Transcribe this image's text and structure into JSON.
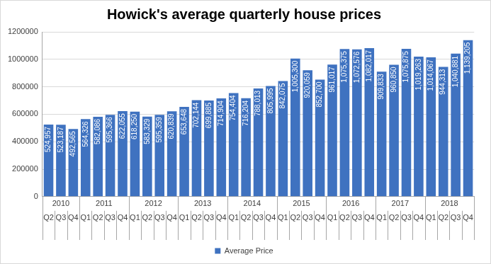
{
  "chart_data": {
    "type": "bar",
    "title": "Howick's average quarterly house prices",
    "categories": [
      "Q2",
      "Q3",
      "Q4",
      "Q1",
      "Q2",
      "Q3",
      "Q4",
      "Q1",
      "Q2",
      "Q3",
      "Q4",
      "Q1",
      "Q2",
      "Q3",
      "Q4",
      "Q1",
      "Q2",
      "Q3",
      "Q4",
      "Q1",
      "Q2",
      "Q3",
      "Q4",
      "Q1",
      "Q2",
      "Q3",
      "Q4",
      "Q1",
      "Q2",
      "Q3",
      "Q4",
      "Q1",
      "Q2",
      "Q3",
      "Q4"
    ],
    "groups": [
      {
        "label": "2010",
        "count": 3
      },
      {
        "label": "2011",
        "count": 4
      },
      {
        "label": "2012",
        "count": 4
      },
      {
        "label": "2013",
        "count": 4
      },
      {
        "label": "2014",
        "count": 4
      },
      {
        "label": "2015",
        "count": 4
      },
      {
        "label": "2016",
        "count": 4
      },
      {
        "label": "2017",
        "count": 4
      },
      {
        "label": "2018",
        "count": 4
      }
    ],
    "series": [
      {
        "name": "Average Price",
        "color": "#3f72c0",
        "values": [
          524957,
          523187,
          492565,
          564326,
          582086,
          595366,
          622055,
          618250,
          583329,
          595359,
          620839,
          653648,
          702144,
          699885,
          714904,
          754404,
          716204,
          788013,
          805995,
          842075,
          1005300,
          920059,
          852700,
          961017,
          1075375,
          1072576,
          1082017,
          909833,
          960850,
          1075875,
          1019263,
          1014067,
          944313,
          1040881,
          1139205
        ],
        "value_labels": [
          "524,957",
          "523,187",
          "492,565",
          "564,326",
          "582,086",
          "595,366",
          "622,055",
          "618,250",
          "583,329",
          "595,359",
          "620,839",
          "653,648",
          "702,144",
          "699,885",
          "714,904",
          "754,404",
          "716,204",
          "788,013",
          "805,995",
          "842,075",
          "1,005,300",
          "920,059",
          "852,700",
          "961,017",
          "1,075,375",
          "1,072,576",
          "1,082,017",
          "909,833",
          "960,850",
          "1,075,875",
          "1,019,263",
          "1,014,067",
          "944,313",
          "1,040,881",
          "1,139,205"
        ]
      }
    ],
    "ylim": [
      0,
      1200000
    ],
    "yticks": [
      0,
      200000,
      400000,
      600000,
      800000,
      1000000,
      1200000
    ],
    "grid": true,
    "legend": "bottom",
    "data_labels": true
  }
}
